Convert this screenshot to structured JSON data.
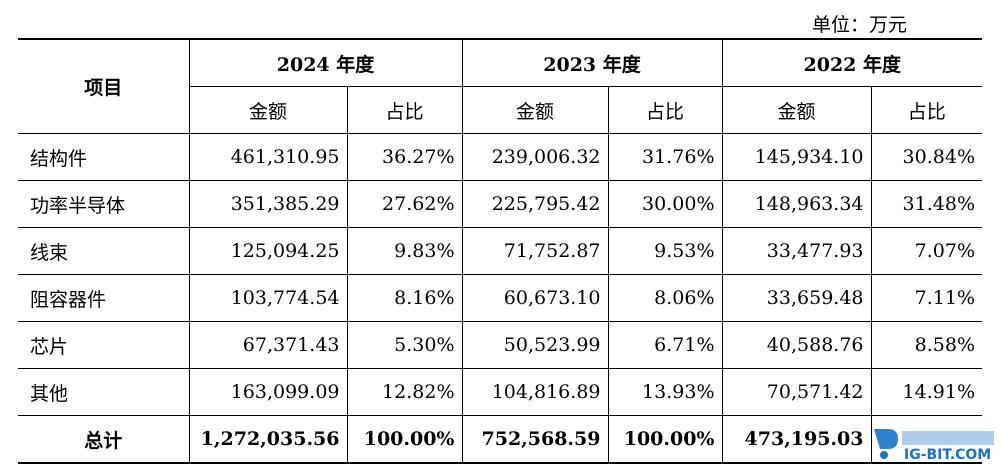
{
  "unit_label": "单位：万元",
  "header": {
    "item_label": "项目",
    "years": [
      "2024 年度",
      "2023 年度",
      "2022 年度"
    ],
    "amount_label": "金额",
    "ratio_label": "占比"
  },
  "rows": [
    {
      "name": "结构件",
      "values": [
        "461,310.95",
        "36.27%",
        "239,006.32",
        "31.76%",
        "145,934.10",
        "30.84%"
      ]
    },
    {
      "name": "功率半导体",
      "values": [
        "351,385.29",
        "27.62%",
        "225,795.42",
        "30.00%",
        "148,963.34",
        "31.48%"
      ]
    },
    {
      "name": "线束",
      "values": [
        "125,094.25",
        "9.83%",
        "71,752.87",
        "9.53%",
        "33,477.93",
        "7.07%"
      ]
    },
    {
      "name": "阻容器件",
      "values": [
        "103,774.54",
        "8.16%",
        "60,673.10",
        "8.06%",
        "33,659.48",
        "7.11%"
      ]
    },
    {
      "name": "芯片",
      "values": [
        "67,371.43",
        "5.30%",
        "50,523.99",
        "6.71%",
        "40,588.76",
        "8.58%"
      ]
    },
    {
      "name": "其他",
      "values": [
        "163,099.09",
        "12.82%",
        "104,816.89",
        "13.93%",
        "70,571.42",
        "14.91%"
      ]
    }
  ],
  "total": {
    "name": "总计",
    "values": [
      "1,272,035.56",
      "100.00%",
      "752,568.59",
      "100.00%",
      "473,195.03",
      ""
    ]
  },
  "watermark": {
    "text": "IG-BIT.COM",
    "colors": {
      "primary": "#1a73c9"
    }
  }
}
